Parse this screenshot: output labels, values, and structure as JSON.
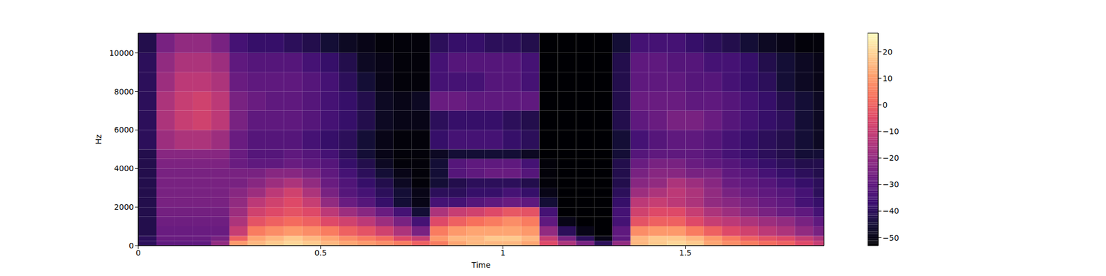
{
  "chart_data": {
    "type": "heatmap",
    "x_label": "Time",
    "y_label": "Hz",
    "color": "magma",
    "xlim": [
      0,
      1.88
    ],
    "xticks": [
      0,
      0.5,
      1,
      1.5
    ],
    "ylim": [
      0,
      11025
    ],
    "yticks": [
      0,
      2000,
      4000,
      6000,
      8000,
      10000
    ],
    "x_edges": [
      0,
      0.05,
      0.1,
      0.15,
      0.2,
      0.25,
      0.3,
      0.35,
      0.4,
      0.45,
      0.5,
      0.55,
      0.6,
      0.65,
      0.7,
      0.75,
      0.8,
      0.85,
      0.9,
      0.95,
      1.0,
      1.05,
      1.1,
      1.15,
      1.2,
      1.25,
      1.3,
      1.35,
      1.4,
      1.45,
      1.5,
      1.55,
      1.6,
      1.65,
      1.7,
      1.75,
      1.8,
      1.85,
      1.88
    ],
    "y_edges": [
      0,
      250,
      500,
      1000,
      1500,
      2000,
      2500,
      3000,
      3500,
      4000,
      4500,
      5000,
      6000,
      7000,
      8000,
      9000,
      10000,
      11025
    ],
    "cells": [
      [
        -40,
        -30,
        -30,
        -30,
        -20,
        10,
        15,
        18,
        20,
        18,
        15,
        12,
        10,
        8,
        5,
        0,
        5,
        12,
        15,
        15,
        15,
        12,
        -5,
        -15,
        -25,
        -40,
        -20,
        15,
        18,
        20,
        18,
        12,
        8,
        5,
        2,
        0,
        -5,
        -10
      ],
      [
        -40,
        -28,
        -28,
        -28,
        -25,
        0,
        12,
        15,
        18,
        15,
        12,
        8,
        5,
        2,
        -5,
        -10,
        10,
        15,
        15,
        18,
        18,
        15,
        -10,
        -25,
        -40,
        -50,
        -30,
        15,
        18,
        18,
        15,
        10,
        5,
        0,
        -3,
        -5,
        -10,
        -15
      ],
      [
        -42,
        -28,
        -28,
        -28,
        -28,
        -10,
        5,
        8,
        10,
        8,
        5,
        0,
        -3,
        -8,
        -15,
        -25,
        5,
        10,
        12,
        12,
        12,
        10,
        -20,
        -40,
        -50,
        -55,
        -30,
        8,
        10,
        10,
        5,
        0,
        -5,
        -8,
        -12,
        -15,
        -20,
        -25
      ],
      [
        -42,
        -27,
        -27,
        -27,
        -27,
        -15,
        -3,
        0,
        2,
        0,
        -5,
        -8,
        -12,
        -18,
        -25,
        -35,
        -5,
        0,
        3,
        5,
        8,
        5,
        -30,
        -50,
        -55,
        -55,
        -35,
        -3,
        0,
        0,
        -5,
        -10,
        -12,
        -15,
        -18,
        -20,
        -25,
        -30
      ],
      [
        -42,
        -26,
        -26,
        -26,
        -26,
        -18,
        -8,
        -5,
        -3,
        -5,
        -12,
        -18,
        -22,
        -28,
        -35,
        -45,
        -15,
        -10,
        -8,
        -5,
        -2,
        -3,
        -35,
        -55,
        -55,
        -55,
        -35,
        -8,
        -5,
        -5,
        -10,
        -15,
        -18,
        -22,
        -25,
        -28,
        -30,
        -35
      ],
      [
        -42,
        -25,
        -25,
        -25,
        -25,
        -20,
        -12,
        -8,
        -5,
        -10,
        -20,
        -28,
        -32,
        -38,
        -45,
        -50,
        -35,
        -35,
        -32,
        -30,
        -28,
        -30,
        -45,
        -55,
        -55,
        -55,
        -38,
        -12,
        -10,
        -12,
        -15,
        -20,
        -22,
        -25,
        -28,
        -30,
        -35,
        -38
      ],
      [
        -42,
        -25,
        -25,
        -25,
        -25,
        -22,
        -18,
        -12,
        -8,
        -15,
        -25,
        -32,
        -35,
        -40,
        -45,
        -50,
        -40,
        -40,
        -38,
        -38,
        -35,
        -38,
        -50,
        -55,
        -55,
        -55,
        -40,
        -18,
        -15,
        -12,
        -15,
        -20,
        -25,
        -28,
        -30,
        -32,
        -35,
        -40
      ],
      [
        -42,
        -25,
        -25,
        -25,
        -25,
        -25,
        -22,
        -18,
        -15,
        -20,
        -28,
        -33,
        -38,
        -42,
        -48,
        -52,
        -45,
        -42,
        -40,
        -40,
        -40,
        -42,
        -52,
        -55,
        -55,
        -55,
        -42,
        -22,
        -20,
        -15,
        -18,
        -22,
        -28,
        -30,
        -32,
        -35,
        -38,
        -40
      ],
      [
        -42,
        -25,
        -25,
        -25,
        -25,
        -25,
        -25,
        -22,
        -22,
        -25,
        -30,
        -35,
        -40,
        -45,
        -50,
        -52,
        -45,
        -32,
        -30,
        -28,
        -28,
        -32,
        -52,
        -55,
        -55,
        -55,
        -42,
        -25,
        -22,
        -22,
        -25,
        -25,
        -30,
        -32,
        -35,
        -38,
        -40,
        -42
      ],
      [
        -42,
        -24,
        -24,
        -24,
        -24,
        -28,
        -30,
        -30,
        -28,
        -30,
        -32,
        -38,
        -42,
        -48,
        -52,
        -52,
        -45,
        -32,
        -30,
        -30,
        -30,
        -35,
        -52,
        -55,
        -55,
        -55,
        -42,
        -28,
        -25,
        -25,
        -28,
        -30,
        -32,
        -35,
        -38,
        -40,
        -42,
        -42
      ],
      [
        -42,
        -22,
        -22,
        -22,
        -22,
        -28,
        -32,
        -32,
        -30,
        -32,
        -35,
        -40,
        -45,
        -50,
        -52,
        -52,
        -48,
        -45,
        -45,
        -45,
        -45,
        -48,
        -55,
        -55,
        -55,
        -55,
        -45,
        -32,
        -30,
        -30,
        -30,
        -32,
        -35,
        -38,
        -40,
        -42,
        -45,
        -45
      ],
      [
        -40,
        -18,
        -15,
        -15,
        -18,
        -28,
        -32,
        -32,
        -32,
        -35,
        -38,
        -40,
        -45,
        -50,
        -52,
        -52,
        -38,
        -35,
        -35,
        -35,
        -38,
        -40,
        -55,
        -55,
        -55,
        -55,
        -45,
        -35,
        -32,
        -30,
        -30,
        -32,
        -35,
        -38,
        -40,
        -42,
        -45,
        -48
      ],
      [
        -40,
        -15,
        -10,
        -8,
        -12,
        -25,
        -30,
        -30,
        -30,
        -32,
        -35,
        -38,
        -42,
        -48,
        -50,
        -50,
        -40,
        -38,
        -38,
        -38,
        -40,
        -42,
        -55,
        -55,
        -55,
        -55,
        -42,
        -30,
        -28,
        -25,
        -25,
        -28,
        -32,
        -35,
        -38,
        -40,
        -45,
        -48
      ],
      [
        -40,
        -15,
        -10,
        -8,
        -12,
        -25,
        -28,
        -30,
        -30,
        -32,
        -35,
        -38,
        -42,
        -48,
        -50,
        -48,
        -28,
        -28,
        -30,
        -30,
        -30,
        -30,
        -55,
        -55,
        -55,
        -55,
        -42,
        -28,
        -28,
        -28,
        -30,
        -30,
        -32,
        -35,
        -38,
        -42,
        -45,
        -48
      ],
      [
        -40,
        -18,
        -12,
        -12,
        -15,
        -28,
        -30,
        -30,
        -30,
        -32,
        -35,
        -40,
        -45,
        -50,
        -52,
        -52,
        -35,
        -35,
        -35,
        -32,
        -32,
        -35,
        -55,
        -55,
        -55,
        -55,
        -42,
        -30,
        -30,
        -30,
        -32,
        -32,
        -35,
        -38,
        -40,
        -45,
        -48,
        -50
      ],
      [
        -40,
        -20,
        -15,
        -15,
        -18,
        -30,
        -32,
        -32,
        -32,
        -35,
        -38,
        -42,
        -48,
        -50,
        -52,
        -52,
        -35,
        -32,
        -32,
        -32,
        -32,
        -35,
        -55,
        -55,
        -55,
        -55,
        -42,
        -30,
        -30,
        -32,
        -32,
        -35,
        -35,
        -38,
        -42,
        -45,
        -48,
        -50
      ],
      [
        -42,
        -25,
        -20,
        -20,
        -25,
        -35,
        -38,
        -38,
        -40,
        -42,
        -45,
        -48,
        -50,
        -52,
        -52,
        -52,
        -40,
        -38,
        -38,
        -40,
        -40,
        -42,
        -55,
        -55,
        -55,
        -55,
        -45,
        -35,
        -35,
        -35,
        -38,
        -40,
        -42,
        -45,
        -48,
        -50,
        -52,
        -52
      ]
    ],
    "colorbar_range": [
      -53,
      27
    ],
    "colorbar_ticks": [
      {
        "value": -50,
        "label": "−50"
      },
      {
        "value": -40,
        "label": "−40"
      },
      {
        "value": -30,
        "label": "−30"
      },
      {
        "value": -20,
        "label": "−20"
      },
      {
        "value": -10,
        "label": "−10"
      },
      0,
      10,
      20
    ]
  }
}
